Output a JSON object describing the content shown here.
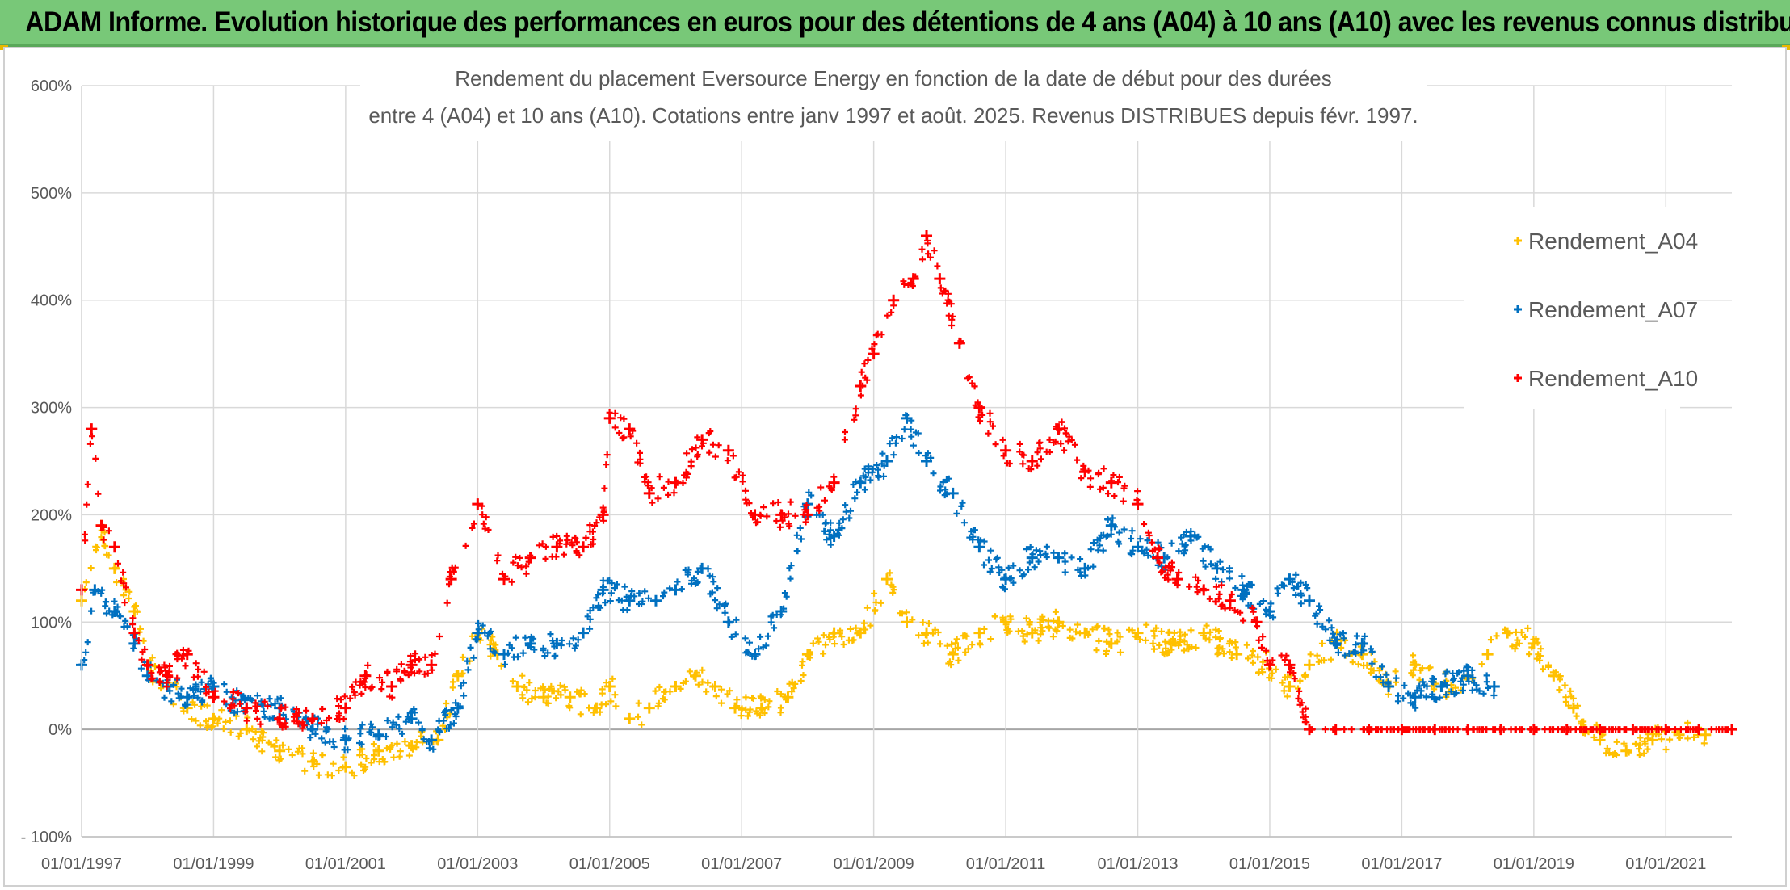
{
  "header": {
    "title": "ADAM Informe. Evolution historique des performances en euros pour des détentions de 4 ans (A04) à 10 ans (A10) avec les revenus connus distribués"
  },
  "chart_data": {
    "type": "scatter",
    "title_line1": "Rendement du placement Eversource Energy en fonction de la date de début pour des durées",
    "title_line2": "entre 4 (A04) et 10 ans (A10). Cotations entre janv 1997 et août. 2025. Revenus DISTRIBUES depuis févr. 1997.",
    "xlabel": "",
    "ylabel": "",
    "ylim": [
      -100,
      600
    ],
    "xlim": [
      1997.0,
      2022.0
    ],
    "x_ticks": [
      "01/01/1997",
      "01/01/1999",
      "01/01/2001",
      "01/01/2003",
      "01/01/2005",
      "01/01/2007",
      "01/01/2009",
      "01/01/2011",
      "01/01/2013",
      "01/01/2015",
      "01/01/2017",
      "01/01/2019",
      "01/01/2021"
    ],
    "x_tick_values": [
      1997,
      1999,
      2001,
      2003,
      2005,
      2007,
      2009,
      2011,
      2013,
      2015,
      2017,
      2019,
      2021
    ],
    "y_ticks": [
      "- 100%",
      "0%",
      "100%",
      "200%",
      "300%",
      "400%",
      "500%",
      "600%"
    ],
    "y_tick_values": [
      -100,
      0,
      100,
      200,
      300,
      400,
      500,
      600
    ],
    "grid": true,
    "legend_position": "right",
    "series": [
      {
        "name": "Rendement_A04",
        "color": "#ffc000",
        "x": [
          1997.0,
          1997.3,
          1997.5,
          1997.8,
          1998.0,
          1998.3,
          1998.6,
          1999.0,
          1999.5,
          2000.0,
          2000.5,
          2001.0,
          2001.5,
          2002.0,
          2002.4,
          2002.7,
          2003.0,
          2003.3,
          2003.6,
          2004.0,
          2004.4,
          2004.8,
          2005.0,
          2005.3,
          2005.6,
          2006.0,
          2006.3,
          2006.6,
          2006.9,
          2007.3,
          2007.7,
          2008.0,
          2008.4,
          2008.8,
          2009.2,
          2009.5,
          2009.8,
          2010.2,
          2010.6,
          2011.0,
          2011.4,
          2011.8,
          2012.2,
          2012.6,
          2013.0,
          2013.5,
          2014.0,
          2014.5,
          2015.0,
          2015.3,
          2015.6,
          2016.0,
          2016.4,
          2016.8,
          2017.2,
          2017.6,
          2018.0,
          2018.3,
          2018.6,
          2019.0,
          2019.3,
          2019.6,
          2020.0,
          2020.4,
          2020.8,
          2021.2,
          2021.6
        ],
        "values": [
          120,
          190,
          150,
          110,
          60,
          40,
          20,
          10,
          0,
          -20,
          -30,
          -35,
          -20,
          -15,
          -10,
          50,
          90,
          70,
          40,
          30,
          30,
          20,
          40,
          10,
          20,
          40,
          50,
          40,
          20,
          20,
          30,
          70,
          90,
          90,
          140,
          100,
          90,
          70,
          90,
          100,
          90,
          100,
          90,
          80,
          90,
          80,
          90,
          70,
          60,
          40,
          60,
          80,
          70,
          40,
          60,
          40,
          50,
          70,
          90,
          80,
          50,
          20,
          -10,
          -20,
          -10,
          -5,
          -5
        ]
      },
      {
        "name": "Rendement_A07",
        "color": "#0070c0",
        "x": [
          1997.0,
          1997.2,
          1997.5,
          1997.8,
          1998.0,
          1998.3,
          1998.6,
          1999.0,
          1999.5,
          2000.0,
          2000.5,
          2001.0,
          2001.5,
          2002.0,
          2002.3,
          2002.7,
          2003.0,
          2003.4,
          2003.8,
          2004.2,
          2004.6,
          2004.9,
          2005.3,
          2005.7,
          2006.0,
          2006.4,
          2006.8,
          2007.2,
          2007.6,
          2008.0,
          2008.4,
          2008.8,
          2009.2,
          2009.5,
          2009.8,
          2010.2,
          2010.6,
          2011.0,
          2011.4,
          2011.8,
          2012.2,
          2012.6,
          2013.0,
          2013.4,
          2013.8,
          2014.2,
          2014.6,
          2015.0,
          2015.3,
          2015.6,
          2016.0,
          2016.4,
          2016.8,
          2017.2,
          2017.6,
          2018.0,
          2018.4
        ],
        "values": [
          60,
          130,
          110,
          80,
          50,
          40,
          30,
          40,
          20,
          20,
          0,
          -10,
          -5,
          10,
          -10,
          20,
          90,
          70,
          80,
          80,
          90,
          130,
          120,
          120,
          130,
          150,
          100,
          70,
          110,
          210,
          180,
          230,
          250,
          290,
          250,
          220,
          170,
          140,
          160,
          160,
          150,
          190,
          170,
          160,
          180,
          150,
          130,
          110,
          140,
          120,
          80,
          80,
          40,
          30,
          40,
          50,
          40
        ]
      },
      {
        "name": "Rendement_A10",
        "color": "#ff0000",
        "x": [
          1997.0,
          1997.15,
          1997.3,
          1997.5,
          1997.8,
          1998.0,
          1998.3,
          1998.6,
          1999.0,
          1999.5,
          2000.0,
          2000.5,
          2001.0,
          2001.3,
          2001.7,
          2002.0,
          2002.3,
          2002.6,
          2003.0,
          2003.4,
          2003.8,
          2004.2,
          2004.6,
          2004.9,
          2005.0,
          2005.3,
          2005.6,
          2006.0,
          2006.4,
          2006.8,
          2007.2,
          2007.6,
          2008.0,
          2008.4,
          2008.8,
          2009.0,
          2009.3,
          2009.6,
          2009.8,
          2010.0,
          2010.3,
          2010.6,
          2011.0,
          2011.4,
          2011.8,
          2012.2,
          2012.6,
          2013.0,
          2013.3,
          2013.6,
          2014.0,
          2014.4,
          2014.8,
          2015.0,
          2015.3,
          2015.6,
          2016.0,
          2016.5,
          2017.0,
          2017.5,
          2018.0,
          2018.5,
          2019.0,
          2019.5,
          2020.0,
          2020.5,
          2021.0,
          2021.5,
          2022.0
        ],
        "values": [
          130,
          280,
          190,
          170,
          90,
          60,
          50,
          70,
          30,
          20,
          10,
          10,
          20,
          50,
          40,
          60,
          60,
          140,
          210,
          140,
          160,
          170,
          170,
          200,
          290,
          280,
          220,
          230,
          270,
          260,
          200,
          200,
          200,
          230,
          320,
          350,
          400,
          420,
          460,
          420,
          360,
          300,
          260,
          250,
          280,
          240,
          230,
          210,
          160,
          140,
          130,
          120,
          100,
          60,
          60,
          0,
          0,
          0,
          0,
          0,
          0,
          0,
          0,
          0,
          0,
          0,
          0,
          0,
          0
        ]
      }
    ]
  }
}
